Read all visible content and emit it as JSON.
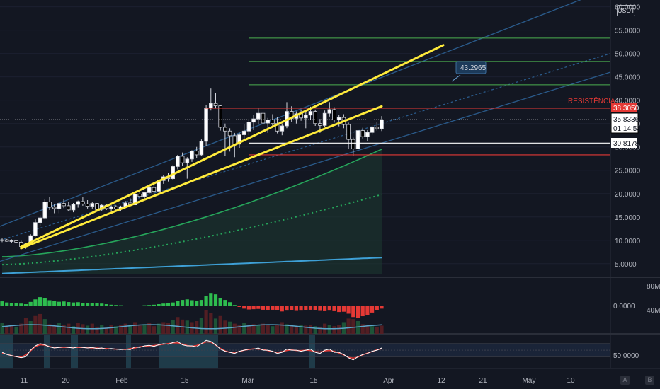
{
  "header": {
    "pair": "USDT"
  },
  "annotations": {
    "resistance_label": "RESISTÊNCIA",
    "target_callout": "43.2965",
    "last_price": "35.8336",
    "countdown": "01:14:53",
    "resistance_price": "38.3050",
    "support_price": "30.8178"
  },
  "scale_buttons": {
    "auto": "A",
    "log": "B"
  },
  "colors": {
    "background": "#131722",
    "bull": "#ffffff",
    "bear": "#000000",
    "channel": "#ffeb3b",
    "resistance": "#e53935",
    "fib": "#4caf50",
    "ma_green": "#26a65b",
    "ma_blue": "#3ea0d6",
    "hist_up": "#2ebd4f",
    "hist_down": "#e53935"
  },
  "chart_data": [
    {
      "type": "candlestick",
      "pane": "price",
      "x_tick_labels": [
        "11",
        "20",
        "Feb",
        "15",
        "Mar",
        "15",
        "Apr",
        "12",
        "21",
        "May",
        "10"
      ],
      "y_tick_labels": [
        "5.0000",
        "10.0000",
        "15.0000",
        "20.0000",
        "25.0000",
        "30.0000",
        "35.0000",
        "40.0000",
        "45.0000",
        "50.0000",
        "55.0000",
        "60.0000"
      ],
      "ylim": [
        2.7,
        61
      ],
      "candles": [
        [
          10.0,
          10.4,
          9.6,
          10.1
        ],
        [
          10.1,
          10.3,
          9.7,
          9.8
        ],
        [
          9.8,
          10.2,
          9.5,
          9.9
        ],
        [
          9.9,
          10.1,
          9.4,
          9.6
        ],
        [
          9.6,
          9.9,
          8.4,
          8.7
        ],
        [
          8.7,
          9.5,
          8.2,
          9.2
        ],
        [
          9.2,
          11.3,
          9.0,
          11.0
        ],
        [
          11.0,
          14.5,
          10.8,
          13.8
        ],
        [
          13.8,
          15.4,
          13.0,
          14.8
        ],
        [
          14.8,
          18.8,
          14.5,
          18.2
        ],
        [
          18.2,
          19.3,
          16.5,
          17.1
        ],
        [
          17.1,
          17.8,
          15.8,
          16.8
        ],
        [
          16.8,
          18.2,
          15.8,
          17.9
        ],
        [
          17.9,
          18.8,
          16.9,
          17.4
        ],
        [
          17.4,
          18.3,
          16.2,
          16.5
        ],
        [
          16.5,
          18.0,
          16.0,
          17.7
        ],
        [
          17.7,
          18.5,
          17.0,
          18.3
        ],
        [
          18.3,
          19.2,
          17.4,
          17.8
        ],
        [
          17.8,
          18.6,
          16.8,
          17.3
        ],
        [
          17.3,
          18.2,
          16.8,
          17.9
        ],
        [
          17.9,
          18.0,
          16.3,
          16.6
        ],
        [
          16.6,
          17.7,
          16.3,
          17.5
        ],
        [
          17.5,
          17.8,
          16.5,
          16.8
        ],
        [
          16.8,
          17.5,
          16.2,
          17.2
        ],
        [
          17.2,
          17.5,
          16.4,
          16.7
        ],
        [
          16.7,
          17.4,
          16.3,
          17.2
        ],
        [
          17.2,
          18.4,
          16.9,
          18.0
        ],
        [
          18.0,
          19.0,
          17.3,
          17.6
        ],
        [
          17.6,
          20.0,
          17.5,
          19.9
        ],
        [
          19.9,
          20.6,
          19.0,
          19.4
        ],
        [
          19.4,
          20.4,
          18.6,
          20.2
        ],
        [
          20.2,
          21.6,
          19.8,
          21.3
        ],
        [
          21.3,
          22.0,
          20.0,
          20.5
        ],
        [
          20.5,
          22.9,
          20.2,
          22.8
        ],
        [
          22.8,
          23.9,
          22.1,
          23.6
        ],
        [
          23.6,
          24.4,
          22.6,
          23.2
        ],
        [
          23.2,
          26.1,
          23.0,
          25.8
        ],
        [
          25.8,
          28.3,
          25.2,
          28.0
        ],
        [
          28.0,
          28.8,
          26.0,
          26.6
        ],
        [
          26.6,
          27.8,
          23.2,
          27.4
        ],
        [
          27.4,
          29.3,
          26.8,
          29.1
        ],
        [
          29.1,
          30.0,
          27.6,
          28.3
        ],
        [
          28.3,
          31.6,
          28.0,
          31.2
        ],
        [
          31.2,
          39.0,
          30.2,
          38.3
        ],
        [
          38.3,
          42.5,
          37.8,
          39.3
        ],
        [
          39.3,
          41.6,
          38.2,
          38.8
        ],
        [
          38.8,
          39.0,
          33.5,
          34.2
        ],
        [
          34.2,
          35.0,
          28.0,
          33.4
        ],
        [
          33.4,
          34.0,
          29.0,
          32.4
        ],
        [
          32.4,
          33.0,
          27.8,
          30.6
        ],
        [
          30.6,
          33.0,
          29.8,
          32.6
        ],
        [
          32.6,
          34.8,
          31.5,
          33.4
        ],
        [
          33.4,
          36.0,
          32.5,
          35.3
        ],
        [
          35.3,
          36.8,
          33.6,
          36.0
        ],
        [
          36.0,
          38.4,
          34.8,
          37.2
        ],
        [
          37.2,
          38.5,
          34.0,
          35.1
        ],
        [
          35.1,
          36.2,
          33.0,
          35.8
        ],
        [
          35.8,
          37.0,
          34.5,
          35.0
        ],
        [
          35.0,
          36.4,
          32.9,
          33.4
        ],
        [
          33.4,
          35.0,
          32.5,
          34.5
        ],
        [
          34.5,
          39.6,
          34.0,
          37.6
        ],
        [
          37.6,
          38.7,
          35.3,
          36.1
        ],
        [
          36.1,
          37.6,
          35.0,
          37.1
        ],
        [
          37.1,
          38.0,
          35.6,
          36.2
        ],
        [
          36.2,
          37.4,
          34.0,
          36.8
        ],
        [
          36.8,
          38.6,
          35.8,
          37.6
        ],
        [
          37.6,
          38.0,
          34.5,
          35.0
        ],
        [
          35.0,
          36.0,
          33.0,
          34.6
        ],
        [
          34.6,
          37.8,
          34.2,
          37.2
        ],
        [
          37.2,
          39.6,
          36.5,
          38.0
        ],
        [
          38.0,
          38.5,
          35.2,
          35.8
        ],
        [
          35.8,
          36.9,
          34.4,
          36.3
        ],
        [
          36.3,
          37.0,
          34.0,
          34.8
        ],
        [
          34.8,
          35.2,
          29.5,
          31.6
        ],
        [
          31.6,
          32.0,
          28.0,
          29.6
        ],
        [
          29.6,
          33.8,
          29.0,
          33.5
        ],
        [
          33.5,
          34.1,
          31.8,
          32.2
        ],
        [
          32.2,
          33.6,
          31.2,
          33.1
        ],
        [
          33.1,
          34.6,
          32.6,
          34.2
        ],
        [
          34.2,
          35.3,
          33.5,
          33.9
        ],
        [
          33.9,
          36.6,
          33.4,
          35.8
        ]
      ],
      "horizontal_levels": {
        "resistance": 38.305,
        "support": 30.8178,
        "lower_resistance": 28.3,
        "top_line": 38.3
      },
      "fibonacci_levels": [
        43.2965,
        48.3,
        53.3
      ],
      "price_target": 43.2965,
      "channel_lines": [
        {
          "from": {
            "bar": 4,
            "price": 8.6
          },
          "to": {
            "bar": 93,
            "price": 51.8
          }
        },
        {
          "from": {
            "bar": 4,
            "price": 8.3
          },
          "to": {
            "bar": 80,
            "price": 38.7
          }
        }
      ]
    },
    {
      "type": "bar",
      "pane": "volume-macd",
      "y_tick_labels": [
        "0.0000",
        "40M",
        "80M"
      ],
      "series": [
        {
          "values": [
            0.3,
            0.22,
            0.2,
            0.18,
            0.14,
            0.1,
            0.26,
            0.44,
            0.6,
            0.55,
            0.38,
            0.31,
            0.27,
            0.29,
            0.25,
            0.22,
            0.24,
            0.2,
            0.2,
            0.16,
            0.18,
            0.14,
            0.1,
            0.06,
            0.04,
            0.02,
            -0.02,
            -0.04,
            -0.03,
            -0.02,
            0.02,
            0.04,
            0.06,
            0.1,
            0.14,
            0.18,
            0.22,
            0.32,
            0.4,
            0.44,
            0.38,
            0.34,
            0.4,
            0.66,
            0.9,
            0.8,
            0.54,
            0.4,
            0.24,
            0.04,
            -0.1,
            -0.22,
            -0.28,
            -0.26,
            -0.24,
            -0.3,
            -0.34,
            -0.3,
            -0.34,
            -0.42,
            -0.36,
            -0.34,
            -0.38,
            -0.36,
            -0.32,
            -0.3,
            -0.34,
            -0.38,
            -0.4,
            -0.36,
            -0.4,
            -0.46,
            -0.44,
            -0.58,
            -0.82,
            -0.9,
            -0.76,
            -0.66,
            -0.5,
            -0.34,
            -0.22
          ]
        },
        {
          "values": [
            0.42,
            0.3,
            0.36,
            0.28,
            0.4,
            0.62,
            0.5,
            0.7,
            0.78,
            0.58,
            0.38,
            0.34,
            0.44,
            0.36,
            0.4,
            0.3,
            0.44,
            0.38,
            0.32,
            0.4,
            0.28,
            0.34,
            0.26,
            0.36,
            0.3,
            0.34,
            0.4,
            0.3,
            0.46,
            0.32,
            0.38,
            0.42,
            0.3,
            0.4,
            0.46,
            0.42,
            0.54,
            0.66,
            0.56,
            0.52,
            0.46,
            0.5,
            0.62,
            0.94,
            0.82,
            0.6,
            0.7,
            0.52,
            0.48,
            0.4,
            0.36,
            0.42,
            0.36,
            0.38,
            0.34,
            0.4,
            0.36,
            0.3,
            0.34,
            0.46,
            0.38,
            0.32,
            0.3,
            0.36,
            0.32,
            0.34,
            0.3,
            0.28,
            0.4,
            0.36,
            0.3,
            0.36,
            0.46,
            0.6,
            0.58,
            0.5,
            0.38,
            0.34,
            0.3,
            0.26,
            0.32
          ]
        }
      ]
    },
    {
      "type": "line",
      "pane": "oscillator",
      "y_tick_labels": [
        "50.0000"
      ],
      "series": [
        {
          "values": [
            46,
            42,
            40,
            38,
            36,
            38,
            50,
            58,
            62,
            60,
            56,
            54,
            55,
            56,
            55,
            54,
            56,
            55,
            54,
            55,
            53,
            54,
            52,
            53,
            52,
            51,
            52,
            51,
            56,
            55,
            58,
            59,
            57,
            60,
            62,
            61,
            64,
            66,
            60,
            58,
            58,
            56,
            62,
            68,
            66,
            60,
            52,
            48,
            46,
            44,
            48,
            50,
            52,
            52,
            54,
            50,
            50,
            48,
            44,
            46,
            52,
            50,
            50,
            48,
            50,
            52,
            46,
            44,
            50,
            52,
            46,
            46,
            42,
            36,
            32,
            38,
            42,
            44,
            48,
            50,
            54
          ]
        }
      ]
    }
  ]
}
